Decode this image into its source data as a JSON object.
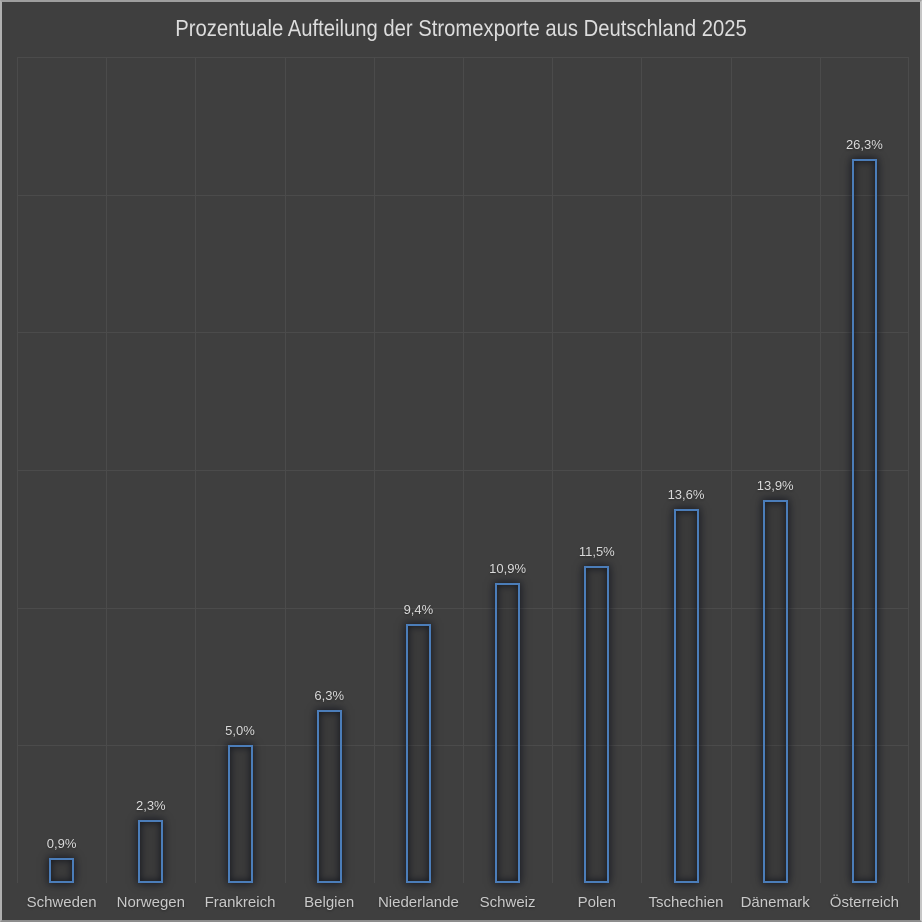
{
  "title": "Prozentuale Aufteilung der Stromexporte aus Deutschland 2025",
  "colors": {
    "background": "#3f3f3f",
    "outer_border": "#adadad",
    "gridline": "#4b4b4b",
    "bar_outline": "#4b7db9",
    "title_text": "#dcdcdc",
    "value_label_text": "#d9d9d9",
    "axis_label_text": "#c9c9c9"
  },
  "chart_data": {
    "type": "bar",
    "title": "Prozentuale Aufteilung der Stromexporte aus Deutschland 2025",
    "categories": [
      "Schweden",
      "Norwegen",
      "Frankreich",
      "Belgien",
      "Niederlande",
      "Schweiz",
      "Polen",
      "Tschechien",
      "Dänemark",
      "Österreich"
    ],
    "values": [
      0.9,
      2.3,
      5.0,
      6.3,
      9.4,
      10.9,
      11.5,
      13.6,
      13.9,
      26.3
    ],
    "value_labels": [
      "0,9%",
      "2,3%",
      "5,0%",
      "6,3%",
      "9,4%",
      "10,9%",
      "11,5%",
      "13,6%",
      "13,9%",
      "26,3%"
    ],
    "xlabel": "",
    "ylabel": "",
    "ylim": [
      0,
      30
    ],
    "grid": true,
    "gridline_step_percent": 5,
    "legend": false
  }
}
